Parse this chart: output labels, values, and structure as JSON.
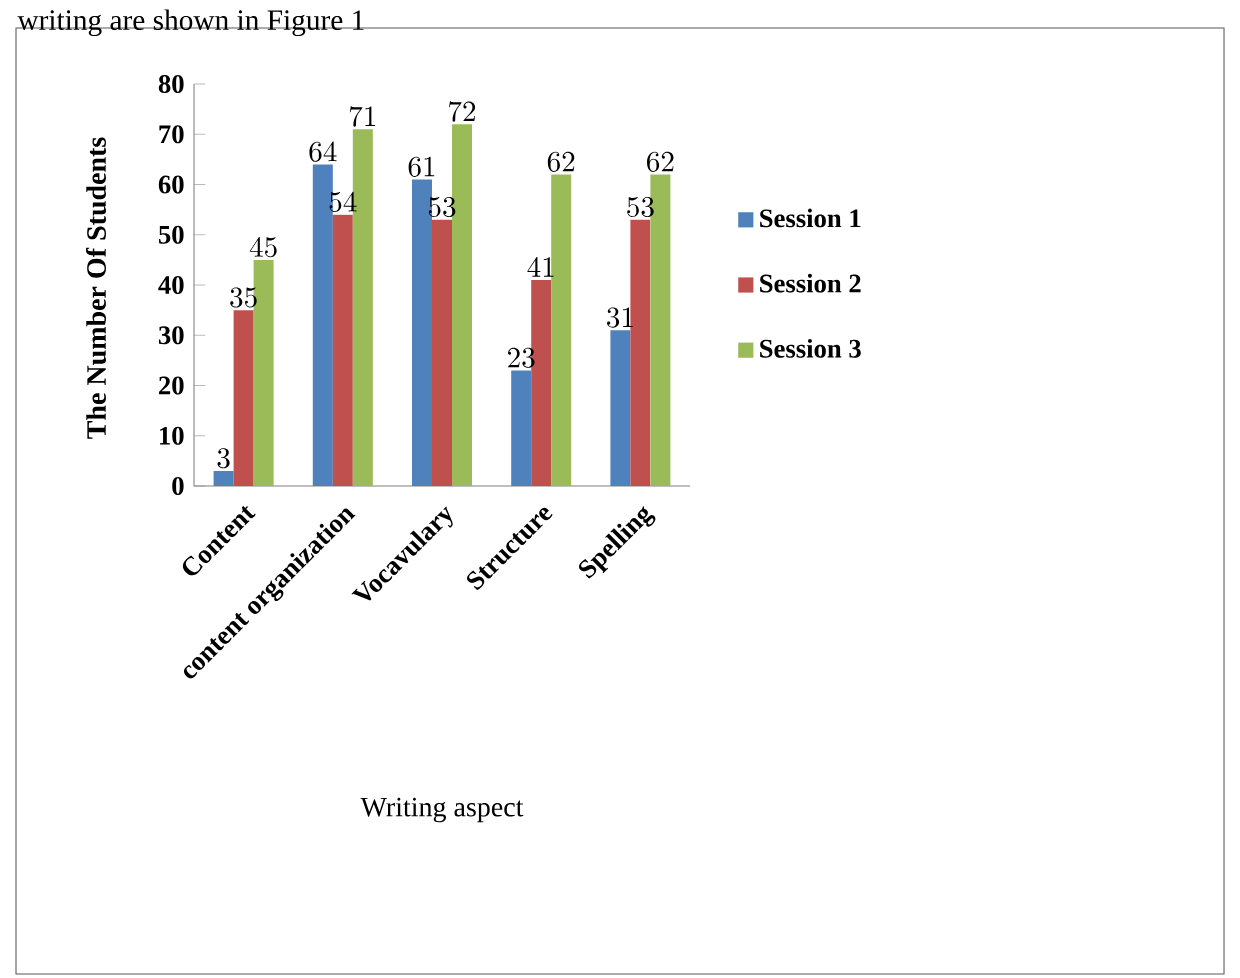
{
  "chart_data": {
    "type": "bar",
    "xlabel": "Writing aspect",
    "ylabel": "The Number Of Students",
    "annotations": [
      "writing are shown in Figure 1"
    ],
    "categories": [
      "Content",
      "content organization",
      "Vocavulary",
      "Structure",
      "Spelling"
    ],
    "series": [
      {
        "name": "Session 1",
        "color": "#4f81bd",
        "values": [
          3,
          64,
          61,
          23,
          31
        ]
      },
      {
        "name": "Session 2",
        "color": "#c0504d",
        "values": [
          35,
          54,
          53,
          41,
          53
        ]
      },
      {
        "name": "Session 3",
        "color": "#9bbb59",
        "values": [
          45,
          71,
          72,
          62,
          62
        ]
      }
    ],
    "ylim": [
      0,
      80
    ],
    "yticks": [
      0,
      10,
      20,
      30,
      40,
      50,
      60,
      70,
      80
    ],
    "data_labels": true,
    "legend": "right",
    "grid": false
  }
}
